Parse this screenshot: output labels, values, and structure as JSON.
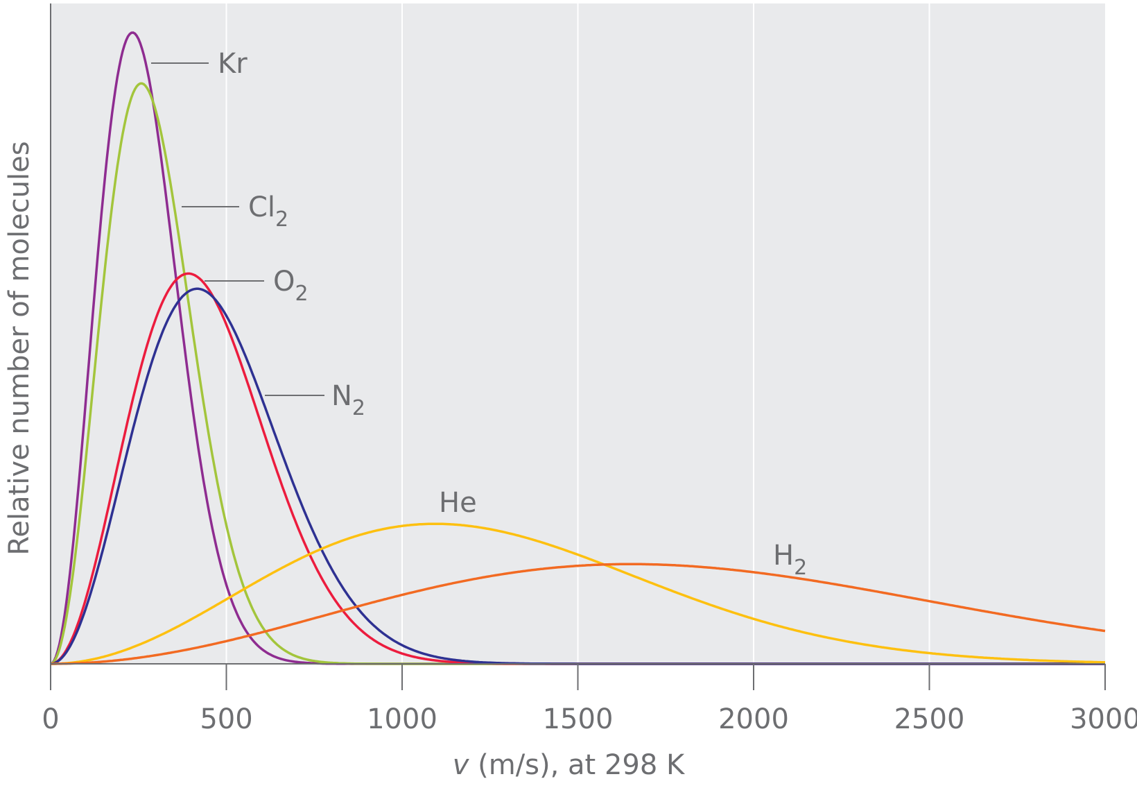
{
  "chart_data": {
    "type": "line",
    "title": "",
    "xlabel_italic": "v",
    "xlabel_rest": " (m/s), at 298 K",
    "ylabel": "Relative number of molecules",
    "xlim": [
      0,
      3000
    ],
    "ylim": [
      0,
      1
    ],
    "xticks": [
      0,
      500,
      1000,
      1500,
      2000,
      2500,
      3000
    ],
    "xtick_labels": [
      "0",
      "500",
      "1000",
      "1500",
      "2000",
      "2500",
      "3000"
    ],
    "grid": "vertical",
    "background": "#e9eaec",
    "series": [
      {
        "name": "Kr",
        "label": "Kr",
        "sub": "",
        "color": "#8e2c90",
        "most_probable_speed": 233,
        "peak": 0.956
      },
      {
        "name": "Cl2",
        "label": "Cl",
        "sub": "2",
        "color": "#a3c53c",
        "most_probable_speed": 258,
        "peak": 0.879
      },
      {
        "name": "O2",
        "label": "O",
        "sub": "2",
        "color": "#ec1c3e",
        "most_probable_speed": 392,
        "peak": 0.591
      },
      {
        "name": "N2",
        "label": "N",
        "sub": "2",
        "color": "#2e3192",
        "most_probable_speed": 417,
        "peak": 0.568
      },
      {
        "name": "He",
        "label": "He",
        "sub": "",
        "color": "#fdc010",
        "most_probable_speed": 1094,
        "peak": 0.212
      },
      {
        "name": "H2",
        "label": "H",
        "sub": "2",
        "color": "#f26a22",
        "most_probable_speed": 1650,
        "peak": 0.151
      }
    ]
  }
}
